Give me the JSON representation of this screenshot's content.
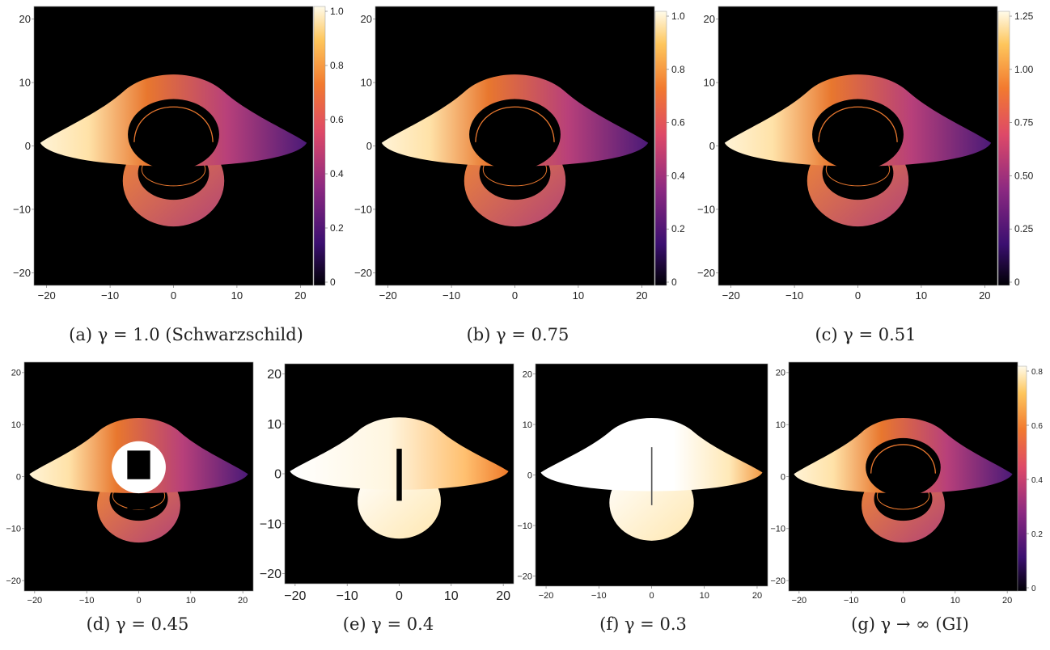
{
  "figure": {
    "panels": [
      {
        "id": "a",
        "caption": "(a)   γ = 1.0 (Schwarzschild)",
        "x_ticks": [
          "−20",
          "−10",
          "0",
          "10",
          "20"
        ],
        "y_ticks": [
          "20",
          "10",
          "0",
          "−10",
          "−20"
        ],
        "colorbar_ticks": [
          "1.0",
          "0.8",
          "0.6",
          "0.4",
          "0.2",
          "0"
        ],
        "variant": "normal"
      },
      {
        "id": "b",
        "caption": "(b)   γ = 0.75",
        "x_ticks": [
          "−20",
          "−10",
          "0",
          "10",
          "20"
        ],
        "y_ticks": [
          "20",
          "10",
          "0",
          "−10",
          "−20"
        ],
        "colorbar_ticks": [
          "1.0",
          "0.8",
          "0.6",
          "0.4",
          "0.2",
          "0"
        ],
        "variant": "normal"
      },
      {
        "id": "c",
        "caption": "(c)   γ = 0.51",
        "x_ticks": [
          "−20",
          "−10",
          "0",
          "10",
          "20"
        ],
        "y_ticks": [
          "20",
          "10",
          "0",
          "−10",
          "−20"
        ],
        "colorbar_ticks": [
          "1.25",
          "1.00",
          "0.75",
          "0.50",
          "0.25",
          "0"
        ],
        "variant": "normal"
      },
      {
        "id": "d",
        "caption": "(d)   γ = 0.45",
        "x_ticks": [
          "−20",
          "−10",
          "0",
          "10",
          "20"
        ],
        "y_ticks": [
          "20",
          "10",
          "0",
          "−10",
          "−20"
        ],
        "variant": "bright-core"
      },
      {
        "id": "e",
        "caption": "(e)   γ = 0.4",
        "x_ticks": [
          "−20",
          "−10",
          "0",
          "10",
          "20"
        ],
        "y_ticks": [
          "20",
          "10",
          "0",
          "−10",
          "−20"
        ],
        "variant": "white"
      },
      {
        "id": "f",
        "caption": "(f)   γ = 0.3",
        "x_ticks": [
          "−20",
          "−10",
          "0",
          "10",
          "20"
        ],
        "y_ticks": [
          "20",
          "10",
          "0",
          "−10",
          "−20"
        ],
        "variant": "whiter"
      },
      {
        "id": "g",
        "caption": "(g)   γ → ∞ (GI)",
        "x_ticks": [
          "−20",
          "−10",
          "0",
          "10",
          "20"
        ],
        "y_ticks": [
          "20",
          "10",
          "0",
          "−10",
          "−20"
        ],
        "colorbar_ticks": [
          "0.8",
          "0.6",
          "0.4",
          "0.2",
          "0"
        ],
        "variant": "normal"
      }
    ],
    "colors": {
      "background": "#000000",
      "orange": "#e8772e",
      "light": "#fff3d6",
      "purple": "#4b1a78"
    }
  }
}
